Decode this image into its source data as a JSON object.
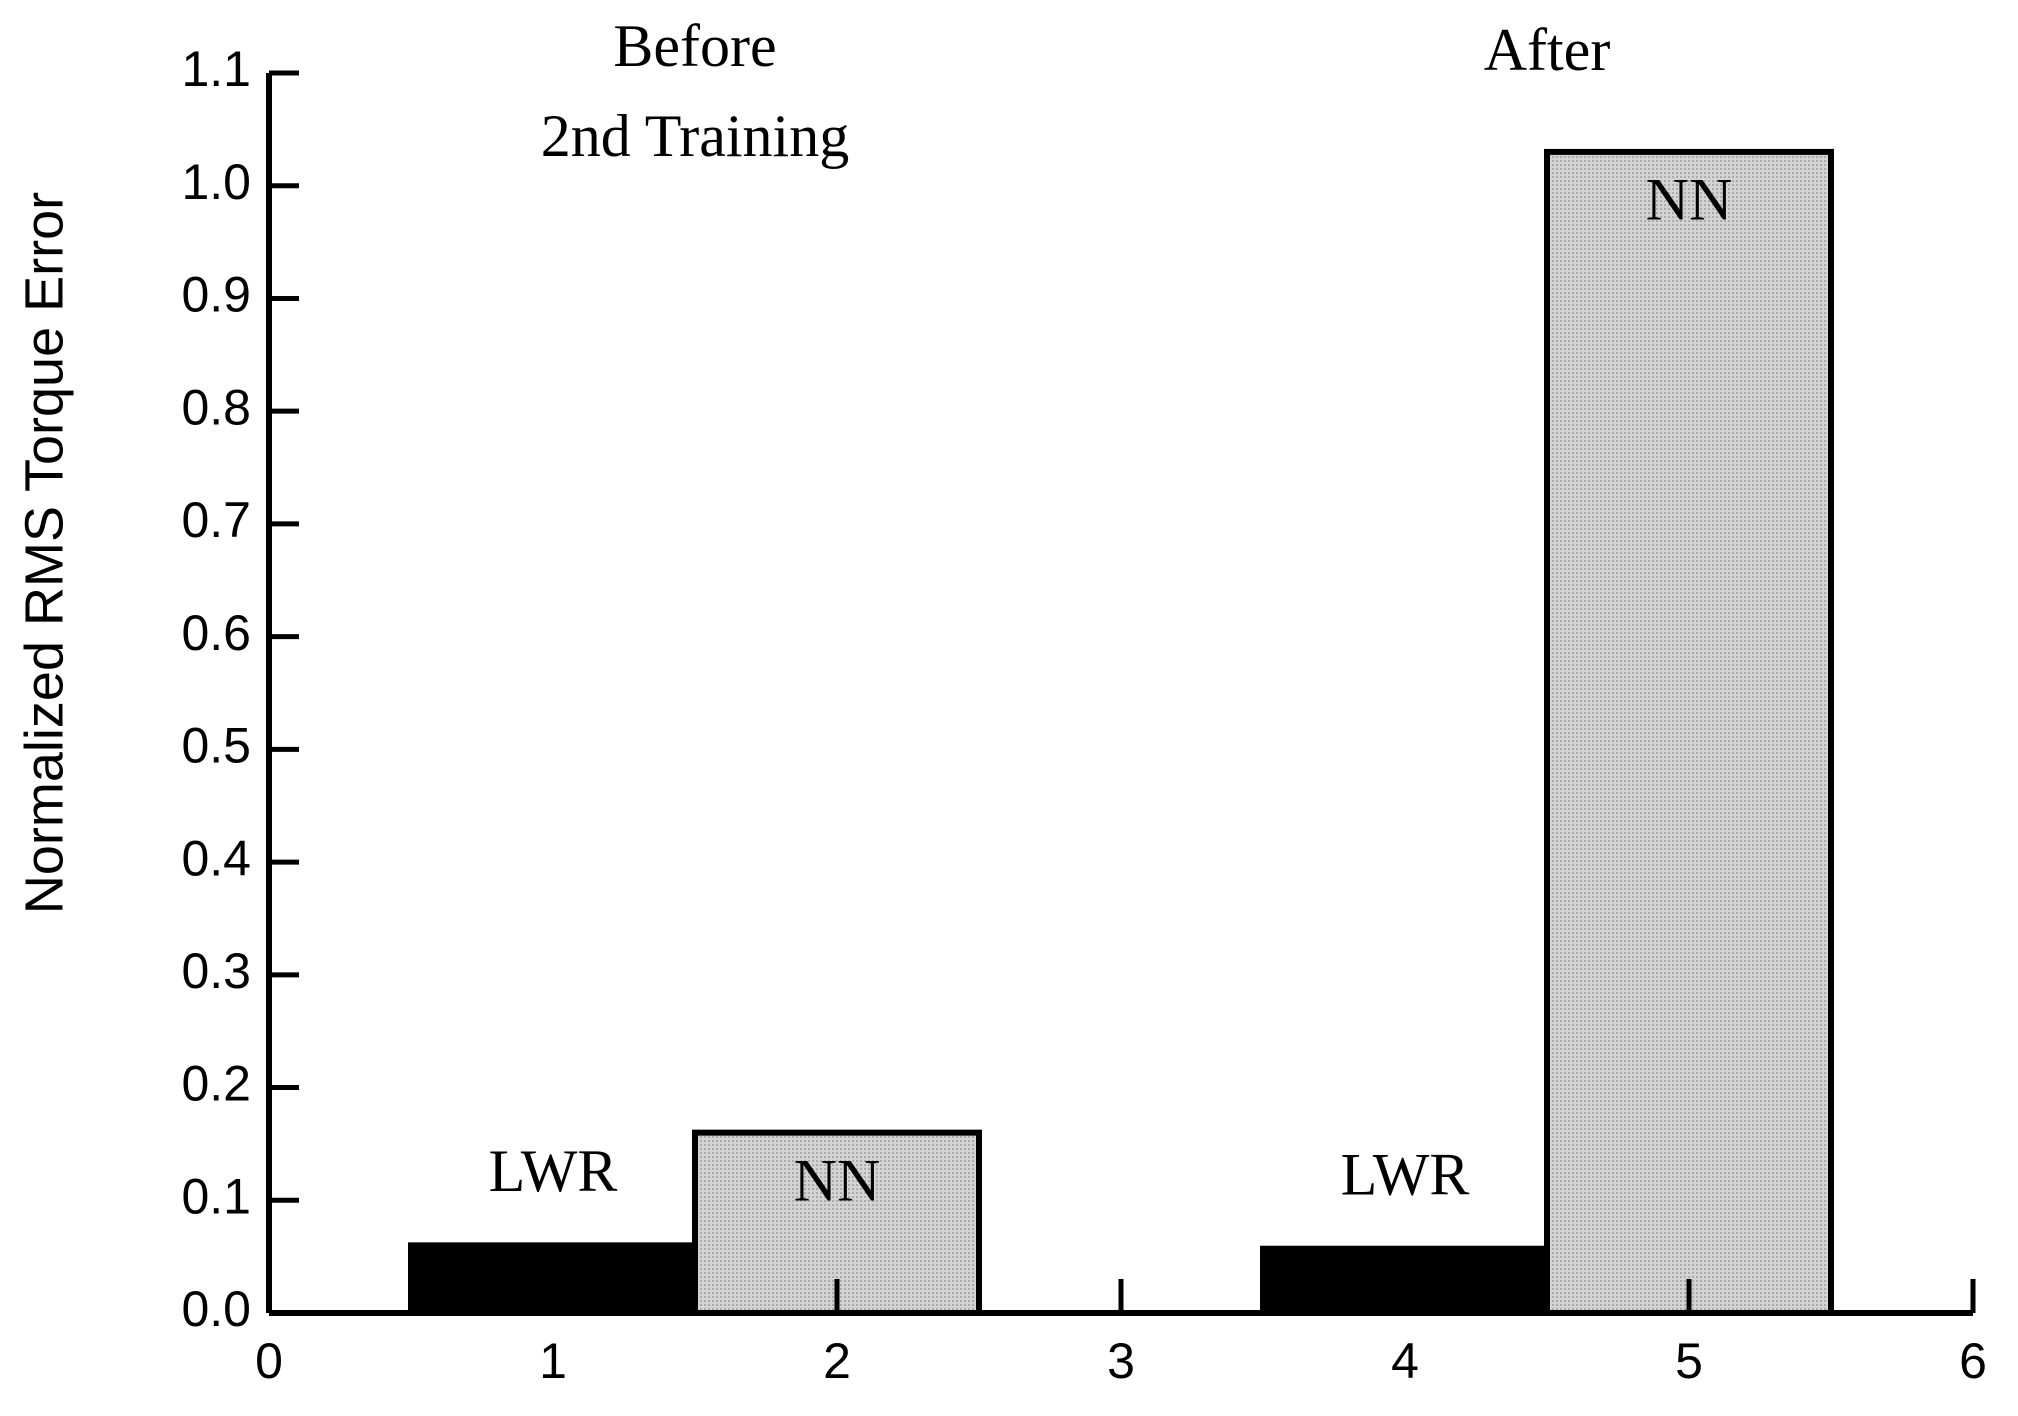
{
  "chart_data": {
    "type": "bar",
    "y_label": "Normalized RMS Torque Error",
    "annotations": [
      "Before",
      "2nd Training",
      "After"
    ],
    "series": [
      {
        "name": "LWR",
        "color": "#000000",
        "x": [
          1,
          4
        ],
        "values": [
          0.06,
          0.057
        ]
      },
      {
        "name": "NN",
        "color": "#d4d4d4",
        "x": [
          2,
          5
        ],
        "values": [
          0.16,
          1.03
        ]
      }
    ],
    "bar_width": 1,
    "xlim": [
      0,
      6
    ],
    "xticks": [
      0,
      1,
      2,
      3,
      4,
      5,
      6
    ],
    "ylim": [
      0,
      1.1
    ],
    "yticks": [
      {
        "value": 0,
        "label": "0.0"
      },
      0.1,
      0.2,
      0.3,
      0.4,
      0.5,
      0.6,
      0.7,
      0.8,
      0.9,
      {
        "value": 1,
        "label": "1.0"
      },
      1.1
    ],
    "grid": false
  }
}
